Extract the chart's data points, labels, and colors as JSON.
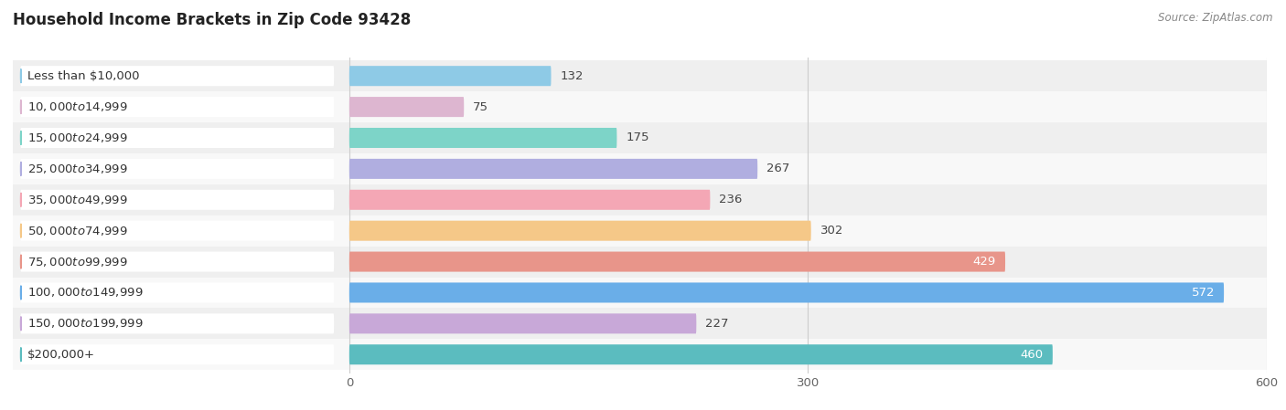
{
  "title": "Household Income Brackets in Zip Code 93428",
  "source": "Source: ZipAtlas.com",
  "categories": [
    "Less than $10,000",
    "$10,000 to $14,999",
    "$15,000 to $24,999",
    "$25,000 to $34,999",
    "$35,000 to $49,999",
    "$50,000 to $74,999",
    "$75,000 to $99,999",
    "$100,000 to $149,999",
    "$150,000 to $199,999",
    "$200,000+"
  ],
  "values": [
    132,
    75,
    175,
    267,
    236,
    302,
    429,
    572,
    227,
    460
  ],
  "bar_colors": [
    "#8ecae6",
    "#ddb6d0",
    "#7dd4c8",
    "#b0aee0",
    "#f4a7b5",
    "#f5c888",
    "#e8958a",
    "#6aaee8",
    "#c8a8d8",
    "#5bbcbf"
  ],
  "bg_row_colors": [
    "#efefef",
    "#f8f8f8"
  ],
  "label_bg_color": "#ffffff",
  "xlim_left": -220,
  "xlim_right": 600,
  "xticks": [
    0,
    300,
    600
  ],
  "label_fontsize": 9.5,
  "value_fontsize": 9.5,
  "title_fontsize": 12,
  "bar_height": 0.65,
  "background_color": "#ffffff",
  "white_text_threshold": 400
}
